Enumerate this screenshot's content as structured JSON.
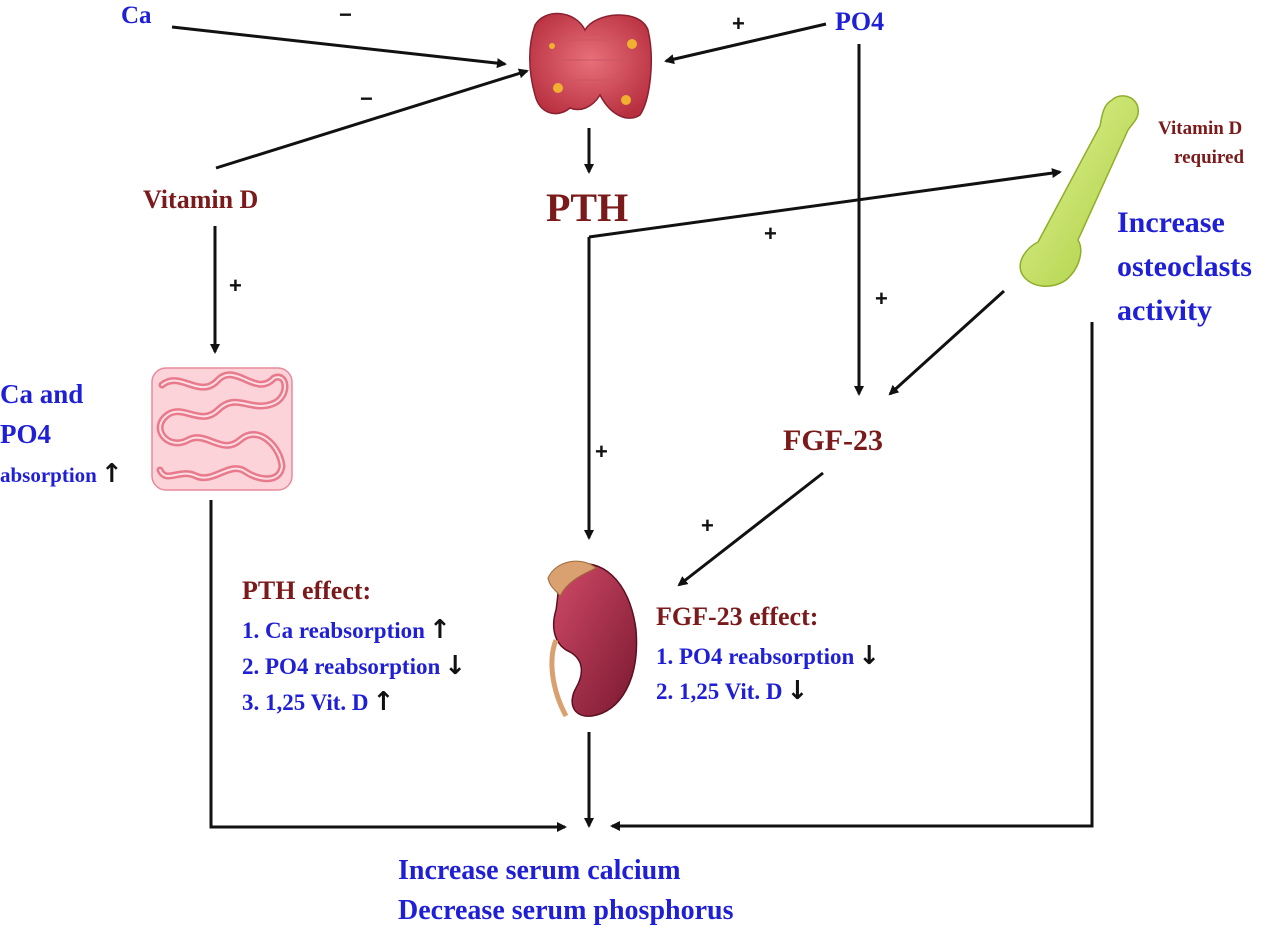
{
  "nodes": {
    "ca": "Ca",
    "po4": "PO4",
    "vitamin_d": "Vitamin D",
    "pth": "PTH",
    "fgf23": "FGF-23",
    "vitd_required_line1": "Vitamin D",
    "vitd_required_line2": "required",
    "bone_effect_line1": "Increase",
    "bone_effect_line2": "osteoclasts",
    "bone_effect_line3": "activity",
    "gut_line1": "Ca and",
    "gut_line2": "PO4",
    "gut_line3": "absorption",
    "outcome_line1": "Increase serum calcium",
    "outcome_line2": "Decrease serum phosphorus"
  },
  "signs": {
    "minus": "−",
    "plus": "+"
  },
  "pth_effect": {
    "title": "PTH effect:",
    "items": [
      "1. Ca reabsorption",
      "2. PO4 reabsorption",
      "3. 1,25 Vit. D"
    ],
    "directions": [
      "up",
      "down",
      "up"
    ]
  },
  "fgf23_effect": {
    "title": "FGF-23 effect:",
    "items": [
      "1. PO4 reabsorption",
      "2. 1,25 Vit. D"
    ],
    "directions": [
      "down",
      "down"
    ]
  },
  "glyphs": {
    "up": "↑",
    "down": "↓"
  },
  "organs": [
    "thyroid-gland-icon",
    "bone-icon",
    "intestine-icon",
    "kidney-icon"
  ],
  "colors": {
    "blue_text": "#1f1fd6",
    "maroon_text": "#7b1a1a",
    "arrows": "#111111"
  }
}
